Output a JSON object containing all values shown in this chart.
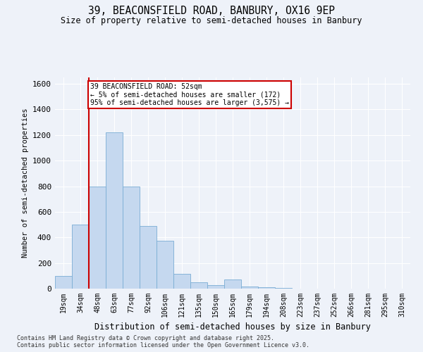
{
  "title1": "39, BEACONSFIELD ROAD, BANBURY, OX16 9EP",
  "title2": "Size of property relative to semi-detached houses in Banbury",
  "xlabel": "Distribution of semi-detached houses by size in Banbury",
  "ylabel": "Number of semi-detached properties",
  "categories": [
    "19sqm",
    "34sqm",
    "48sqm",
    "63sqm",
    "77sqm",
    "92sqm",
    "106sqm",
    "121sqm",
    "135sqm",
    "150sqm",
    "165sqm",
    "179sqm",
    "194sqm",
    "208sqm",
    "223sqm",
    "237sqm",
    "252sqm",
    "266sqm",
    "281sqm",
    "295sqm",
    "310sqm"
  ],
  "values": [
    100,
    500,
    800,
    1220,
    800,
    490,
    375,
    115,
    50,
    30,
    70,
    15,
    10,
    5,
    2,
    2,
    1,
    0,
    0,
    0,
    0
  ],
  "bar_color": "#c5d8ef",
  "bar_edgecolor": "#7aadd4",
  "redline_color": "#cc0000",
  "redline_x": 1.5,
  "annotation_title": "39 BEACONSFIELD ROAD: 52sqm",
  "annotation_line1": "← 5% of semi-detached houses are smaller (172)",
  "annotation_line2": "95% of semi-detached houses are larger (3,575) →",
  "annotation_box_facecolor": "#ffffff",
  "annotation_box_edgecolor": "#cc0000",
  "ylim": [
    0,
    1650
  ],
  "yticks": [
    0,
    200,
    400,
    600,
    800,
    1000,
    1200,
    1400,
    1600
  ],
  "footer1": "Contains HM Land Registry data © Crown copyright and database right 2025.",
  "footer2": "Contains public sector information licensed under the Open Government Licence v3.0.",
  "bg_color": "#eef2f9",
  "grid_color": "#ffffff"
}
